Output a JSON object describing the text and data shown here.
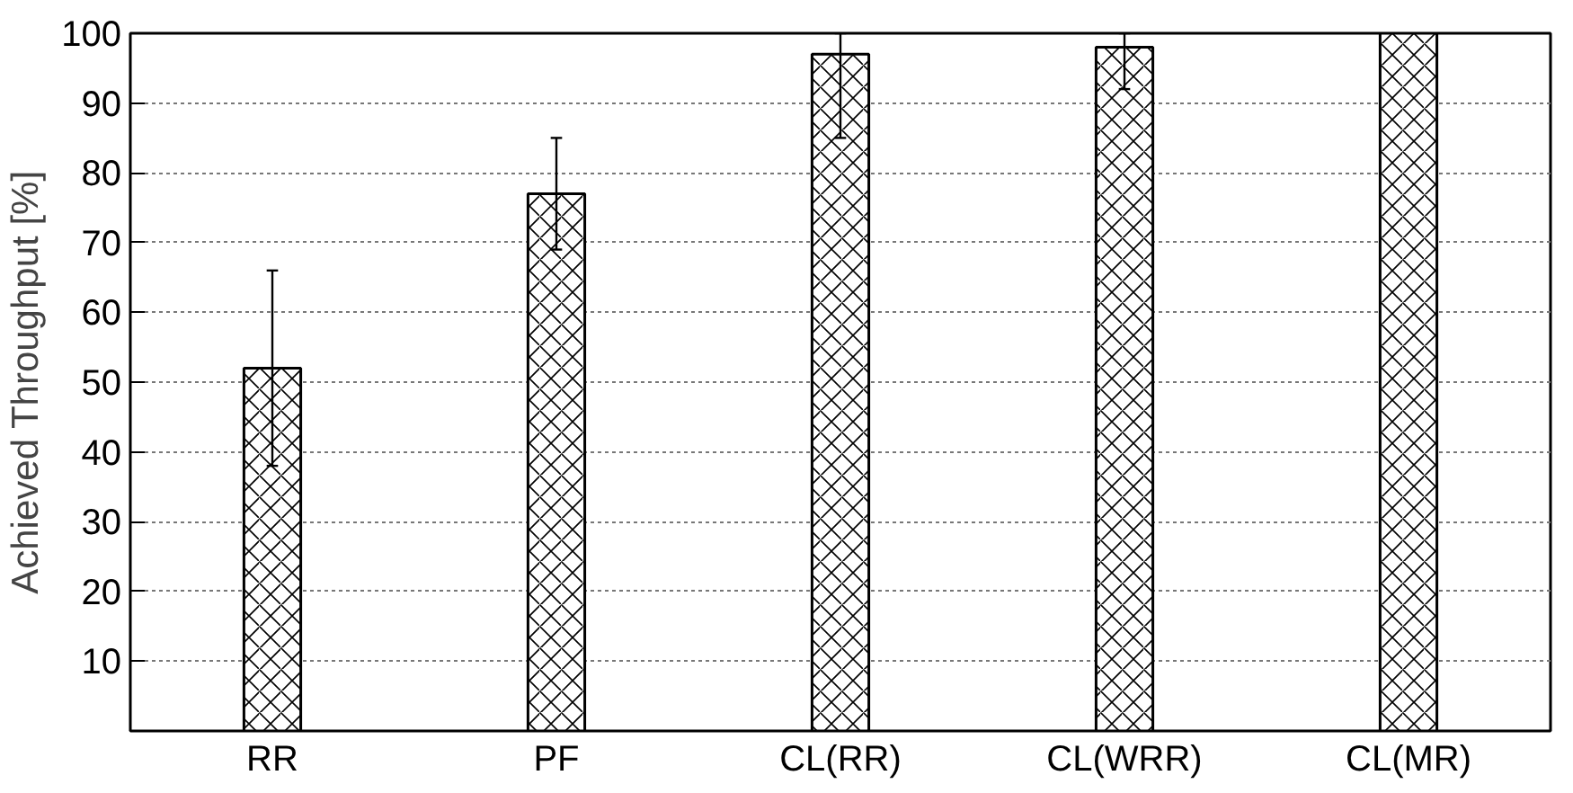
{
  "chart_data": {
    "type": "bar",
    "ylabel": "Achieved Throughput [%]",
    "categories": [
      "RR",
      "PF",
      "CL(RR)",
      "CL(WRR)",
      "CL(MR)"
    ],
    "values": [
      52,
      77,
      97,
      98,
      100
    ],
    "errors": [
      [
        38,
        66
      ],
      [
        69,
        85
      ],
      [
        85,
        100
      ],
      [
        92,
        100
      ],
      null
    ],
    "color": "#ffffff",
    "ylim": [
      0,
      100
    ],
    "yticks": [
      10,
      20,
      30,
      40,
      50,
      60,
      70,
      80,
      90,
      100
    ],
    "grid": "y"
  }
}
